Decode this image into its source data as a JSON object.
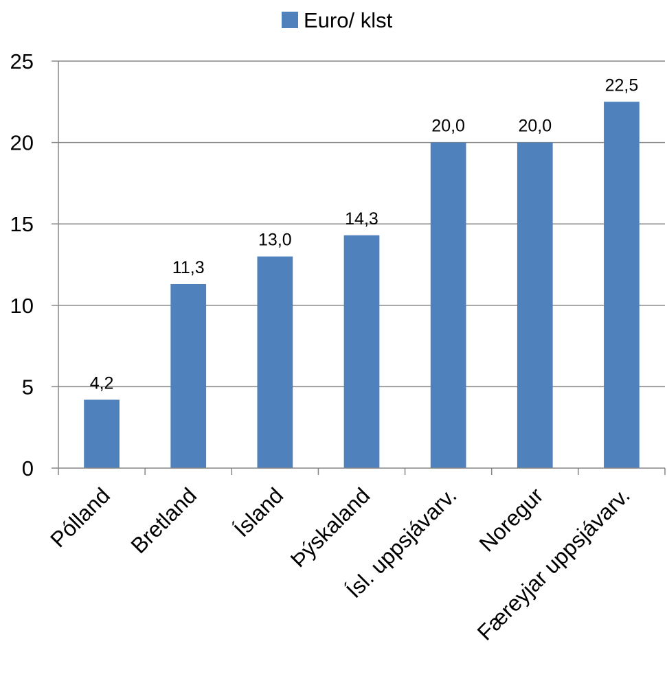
{
  "chart_data": {
    "type": "bar",
    "categories": [
      "Pólland",
      "Bretland",
      "Ísland",
      "Þýskaland",
      "Ísl. uppsjávarv.",
      "Noregur",
      "Færeyjar uppsjávarv."
    ],
    "series": [
      {
        "name": "Euro/ klst",
        "values": [
          4.2,
          11.3,
          13.0,
          14.3,
          20.0,
          20.0,
          22.5
        ]
      }
    ],
    "data_labels": [
      "4,2",
      "11,3",
      "13,0",
      "14,3",
      "20,0",
      "20,0",
      "22,5"
    ],
    "ylim": [
      0,
      25
    ],
    "yticks": [
      0,
      5,
      10,
      15,
      20,
      25
    ],
    "grid": true,
    "legend_position": "top-center",
    "colors": {
      "bar": "#4F81BD",
      "grid": "#868686",
      "axis": "#868686",
      "text": "#000000"
    }
  }
}
